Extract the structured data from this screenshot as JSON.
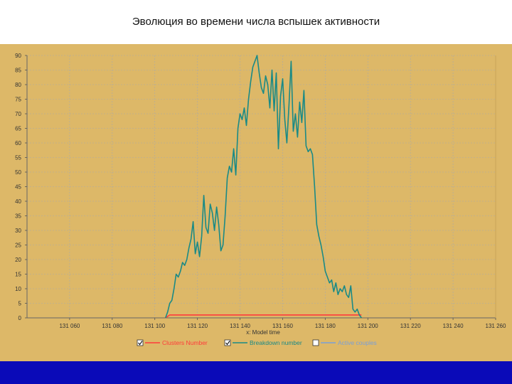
{
  "slide": {
    "title": "Эволюция во времени числа вспышек активности"
  },
  "colors": {
    "title_bar": "#ffffff",
    "background": "#0a0ab8",
    "panel": "#ddb868",
    "plot_area": "#ddb868",
    "grid": "#a9a9a9",
    "cluster_series": "#ff3b3b",
    "breakdown_series": "#1a8a86",
    "active_series": "#7a9fd8"
  },
  "chart_data": {
    "type": "line",
    "title": "",
    "xlabel": "x: Model time",
    "ylabel": "",
    "xlim": [
      131040,
      131260
    ],
    "ylim": [
      0,
      90
    ],
    "x_ticks": [
      131060,
      131080,
      131100,
      131120,
      131140,
      131160,
      131180,
      131200,
      131220,
      131240,
      131260
    ],
    "x_tick_labels": [
      "131 060",
      "131 080",
      "131 100",
      "131 120",
      "131 140",
      "131 160",
      "131 180",
      "131 200",
      "131 220",
      "131 240",
      "131 260"
    ],
    "y_ticks": [
      0,
      5,
      10,
      15,
      20,
      25,
      30,
      35,
      40,
      45,
      50,
      55,
      60,
      65,
      70,
      75,
      80,
      85,
      90
    ],
    "y_tick_labels": [
      "0",
      "5",
      "10",
      "15",
      "20",
      "25",
      "30",
      "35",
      "40",
      "45",
      "50",
      "55",
      "60",
      "65",
      "70",
      "75",
      "80",
      "85",
      "90"
    ],
    "grid": true,
    "legend_position": "bottom",
    "series": [
      {
        "name": "Clusters Number",
        "color": "#ff3b3b",
        "checked": true,
        "x": [
          131105,
          131107,
          131197
        ],
        "y": [
          0,
          1,
          1
        ]
      },
      {
        "name": "Breakdown number",
        "color": "#1a8a86",
        "checked": true,
        "x": [
          131105,
          131106,
          131107,
          131108,
          131109,
          131110,
          131111,
          131112,
          131113,
          131114,
          131115,
          131116,
          131117,
          131118,
          131119,
          131120,
          131121,
          131122,
          131123,
          131124,
          131125,
          131126,
          131127,
          131128,
          131129,
          131130,
          131131,
          131132,
          131133,
          131134,
          131135,
          131136,
          131137,
          131138,
          131139,
          131140,
          131141,
          131142,
          131143,
          131144,
          131145,
          131146,
          131147,
          131148,
          131149,
          131150,
          131151,
          131152,
          131153,
          131154,
          131155,
          131156,
          131157,
          131158,
          131159,
          131160,
          131161,
          131162,
          131163,
          131164,
          131165,
          131166,
          131167,
          131168,
          131169,
          131170,
          131171,
          131172,
          131173,
          131174,
          131175,
          131176,
          131177,
          131178,
          131179,
          131180,
          131181,
          131182,
          131183,
          131184,
          131185,
          131186,
          131187,
          131188,
          131189,
          131190,
          131191,
          131192,
          131193,
          131194,
          131195,
          131196,
          131197
        ],
        "y": [
          0,
          2,
          5,
          6,
          10,
          15,
          14,
          16,
          19,
          18,
          20,
          24,
          27,
          33,
          22,
          26,
          21,
          28,
          42,
          31,
          29,
          39,
          36,
          30,
          38,
          32,
          23,
          25,
          35,
          48,
          52,
          50,
          58,
          49,
          65,
          70,
          68,
          72,
          66,
          75,
          81,
          86,
          88,
          90,
          84,
          79,
          77,
          83,
          80,
          72,
          85,
          71,
          84,
          58,
          76,
          82,
          68,
          60,
          73,
          88,
          64,
          70,
          62,
          74,
          67,
          78,
          59,
          57,
          58,
          56,
          45,
          32,
          28,
          25,
          21,
          16,
          14,
          12,
          13,
          9,
          12,
          8,
          10,
          9,
          11,
          8,
          7,
          11,
          3,
          2,
          3,
          1,
          0
        ]
      },
      {
        "name": "Active couples",
        "color": "#7a9fd8",
        "checked": false,
        "x": [],
        "y": []
      }
    ]
  }
}
